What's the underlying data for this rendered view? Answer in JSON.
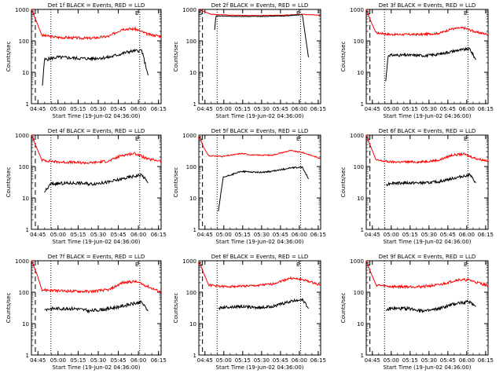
{
  "chart_data": [
    {
      "type": "line",
      "title": "Det 1f BLACK = Events, RED = LLD",
      "xlabel": "Start Time (19-Jun-02 04:36:00)",
      "ylabel": "Counts/sec",
      "red": [
        [
          0,
          1000
        ],
        [
          0.04,
          400
        ],
        [
          0.08,
          150
        ],
        [
          0.2,
          130
        ],
        [
          0.45,
          120
        ],
        [
          0.6,
          140
        ],
        [
          0.7,
          240
        ],
        [
          0.8,
          240
        ],
        [
          0.9,
          160
        ],
        [
          1,
          140
        ]
      ],
      "black": [
        [
          0.08,
          2
        ],
        [
          0.1,
          25
        ],
        [
          0.2,
          30
        ],
        [
          0.35,
          28
        ],
        [
          0.45,
          27
        ],
        [
          0.6,
          30
        ],
        [
          0.75,
          45
        ],
        [
          0.85,
          50
        ],
        [
          0.9,
          8
        ]
      ],
      "bstart": 0.085,
      "bend": 0.9,
      "noise": 0.12
    },
    {
      "type": "line",
      "title": "Det 2f BLACK = Events, RED = LLD",
      "xlabel": "Start Time (19-Jun-02 04:36:00)",
      "ylabel": "Counts/sec",
      "red": [
        [
          0,
          1000
        ],
        [
          0.1,
          700
        ],
        [
          0.3,
          650
        ],
        [
          0.5,
          640
        ],
        [
          0.7,
          660
        ],
        [
          0.85,
          700
        ],
        [
          1,
          650
        ]
      ],
      "black": [
        [
          0.12,
          80
        ],
        [
          0.14,
          620
        ],
        [
          0.3,
          600
        ],
        [
          0.5,
          600
        ],
        [
          0.7,
          620
        ],
        [
          0.85,
          680
        ],
        [
          0.9,
          30
        ]
      ],
      "bstart": 0.13,
      "bend": 0.9,
      "noise": 0.02
    },
    {
      "type": "line",
      "title": "Det 3f BLACK = Events, RED = LLD",
      "xlabel": "Start Time (19-Jun-02 04:36:00)",
      "ylabel": "Counts/sec",
      "red": [
        [
          0,
          1000
        ],
        [
          0.04,
          400
        ],
        [
          0.08,
          180
        ],
        [
          0.2,
          160
        ],
        [
          0.45,
          160
        ],
        [
          0.6,
          175
        ],
        [
          0.7,
          240
        ],
        [
          0.8,
          260
        ],
        [
          0.9,
          190
        ],
        [
          1,
          160
        ]
      ],
      "black": [
        [
          0.15,
          2
        ],
        [
          0.18,
          35
        ],
        [
          0.35,
          35
        ],
        [
          0.5,
          34
        ],
        [
          0.6,
          38
        ],
        [
          0.75,
          50
        ],
        [
          0.85,
          55
        ],
        [
          0.9,
          25
        ]
      ],
      "bstart": 0.16,
      "bend": 0.9,
      "noise": 0.1
    },
    {
      "type": "line",
      "title": "Det 4f BLACK = Events, RED = LLD",
      "xlabel": "Start Time (19-Jun-02 04:36:00)",
      "ylabel": "Counts/sec",
      "red": [
        [
          0,
          1000
        ],
        [
          0.04,
          400
        ],
        [
          0.08,
          160
        ],
        [
          0.2,
          140
        ],
        [
          0.45,
          130
        ],
        [
          0.6,
          150
        ],
        [
          0.7,
          230
        ],
        [
          0.8,
          260
        ],
        [
          0.9,
          170
        ],
        [
          1,
          150
        ]
      ],
      "black": [
        [
          0.1,
          15
        ],
        [
          0.15,
          28
        ],
        [
          0.35,
          30
        ],
        [
          0.45,
          28
        ],
        [
          0.6,
          32
        ],
        [
          0.75,
          45
        ],
        [
          0.85,
          55
        ],
        [
          0.9,
          30
        ]
      ],
      "bstart": 0.1,
      "bend": 0.9,
      "noise": 0.12
    },
    {
      "type": "line",
      "title": "Det 5f BLACK = Events, RED = LLD",
      "xlabel": "Start Time (19-Jun-02 04:36:00)",
      "ylabel": "Counts/sec",
      "red": [
        [
          0,
          1000
        ],
        [
          0.04,
          400
        ],
        [
          0.08,
          220
        ],
        [
          0.2,
          210
        ],
        [
          0.35,
          260
        ],
        [
          0.45,
          230
        ],
        [
          0.6,
          230
        ],
        [
          0.75,
          320
        ],
        [
          0.85,
          280
        ],
        [
          1,
          180
        ]
      ],
      "black": [
        [
          0.15,
          2
        ],
        [
          0.2,
          45
        ],
        [
          0.35,
          70
        ],
        [
          0.5,
          65
        ],
        [
          0.6,
          70
        ],
        [
          0.75,
          90
        ],
        [
          0.85,
          95
        ],
        [
          0.9,
          40
        ]
      ],
      "bstart": 0.16,
      "bend": 0.9,
      "noise": 0.05
    },
    {
      "type": "line",
      "title": "Det 6f BLACK = Events, RED = LLD",
      "xlabel": "Start Time (19-Jun-02 04:36:00)",
      "ylabel": "Counts/sec",
      "red": [
        [
          0,
          1000
        ],
        [
          0.04,
          400
        ],
        [
          0.08,
          160
        ],
        [
          0.2,
          140
        ],
        [
          0.45,
          140
        ],
        [
          0.6,
          160
        ],
        [
          0.7,
          230
        ],
        [
          0.8,
          250
        ],
        [
          0.9,
          180
        ],
        [
          1,
          150
        ]
      ],
      "black": [
        [
          0.15,
          25
        ],
        [
          0.2,
          30
        ],
        [
          0.35,
          30
        ],
        [
          0.5,
          30
        ],
        [
          0.6,
          33
        ],
        [
          0.75,
          45
        ],
        [
          0.85,
          55
        ],
        [
          0.9,
          30
        ]
      ],
      "bstart": 0.16,
      "bend": 0.9,
      "noise": 0.1
    },
    {
      "type": "line",
      "title": "Det 7f BLACK = Events, RED = LLD",
      "xlabel": "Start Time (19-Jun-02 04:36:00)",
      "ylabel": "Counts/sec",
      "red": [
        [
          0,
          1000
        ],
        [
          0.04,
          400
        ],
        [
          0.08,
          120
        ],
        [
          0.2,
          110
        ],
        [
          0.45,
          105
        ],
        [
          0.6,
          120
        ],
        [
          0.7,
          200
        ],
        [
          0.8,
          220
        ],
        [
          0.9,
          150
        ],
        [
          1,
          100
        ]
      ],
      "black": [
        [
          0.1,
          28
        ],
        [
          0.15,
          30
        ],
        [
          0.35,
          30
        ],
        [
          0.45,
          25
        ],
        [
          0.6,
          30
        ],
        [
          0.75,
          40
        ],
        [
          0.85,
          48
        ],
        [
          0.9,
          25
        ]
      ],
      "bstart": 0.1,
      "bend": 0.9,
      "noise": 0.12
    },
    {
      "type": "line",
      "title": "Det 8f BLACK = Events, RED = LLD",
      "xlabel": "Start Time (19-Jun-02 04:36:00)",
      "ylabel": "Counts/sec",
      "red": [
        [
          0,
          1000
        ],
        [
          0.04,
          400
        ],
        [
          0.08,
          170
        ],
        [
          0.2,
          150
        ],
        [
          0.45,
          160
        ],
        [
          0.6,
          180
        ],
        [
          0.75,
          280
        ],
        [
          0.85,
          250
        ],
        [
          1,
          170
        ]
      ],
      "black": [
        [
          0.15,
          30
        ],
        [
          0.2,
          33
        ],
        [
          0.35,
          35
        ],
        [
          0.5,
          32
        ],
        [
          0.6,
          35
        ],
        [
          0.75,
          50
        ],
        [
          0.85,
          60
        ],
        [
          0.9,
          30
        ]
      ],
      "bstart": 0.16,
      "bend": 0.9,
      "noise": 0.1
    },
    {
      "type": "line",
      "title": "Det 9f BLACK = Events, RED = LLD",
      "xlabel": "Start Time (19-Jun-02 04:36:00)",
      "ylabel": "Counts/sec",
      "red": [
        [
          0,
          1000
        ],
        [
          0.04,
          400
        ],
        [
          0.08,
          170
        ],
        [
          0.2,
          150
        ],
        [
          0.45,
          150
        ],
        [
          0.6,
          170
        ],
        [
          0.75,
          250
        ],
        [
          0.85,
          240
        ],
        [
          1,
          160
        ]
      ],
      "black": [
        [
          0.15,
          25
        ],
        [
          0.2,
          30
        ],
        [
          0.35,
          30
        ],
        [
          0.5,
          25
        ],
        [
          0.6,
          30
        ],
        [
          0.75,
          45
        ],
        [
          0.85,
          50
        ],
        [
          0.9,
          35
        ]
      ],
      "bstart": 0.16,
      "bend": 0.9,
      "noise": 0.12
    }
  ],
  "axes": {
    "xticks": [
      "04:45",
      "05:00",
      "05:15",
      "05:30",
      "05:45",
      "06:00",
      "06:15"
    ],
    "yticks": [
      "1",
      "10",
      "100",
      "1000"
    ],
    "ylim": [
      1,
      1000
    ],
    "xlim_minutes": [
      0,
      100
    ],
    "marker_S": "S",
    "marker_E": "E"
  },
  "colors": {
    "red": "#ff0000",
    "black": "#000000",
    "axes": "#000000"
  }
}
